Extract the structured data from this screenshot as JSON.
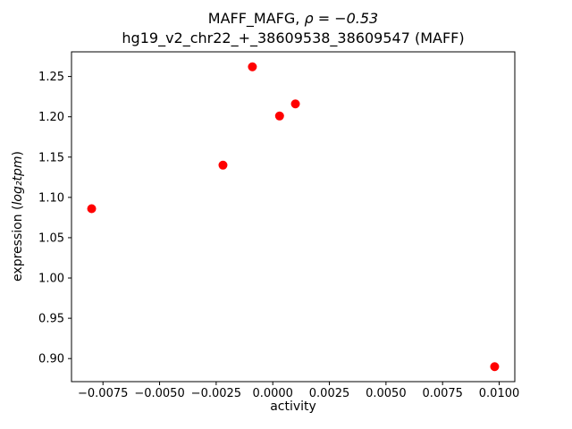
{
  "figure": {
    "title_prefix": "MAFF_MAFG, ",
    "title_math": "ρ = −0.53",
    "title_line2": "hg19_v2_chr22_+_38609538_38609547 (MAFF)",
    "xlabel": "activity",
    "ylabel_prefix": "expression (",
    "ylabel_math": "log₂tpm",
    "ylabel_suffix": ")"
  },
  "chart_data": {
    "type": "scatter",
    "title": "MAFF_MAFG, ρ = −0.53\nhg19_v2_chr22_+_38609538_38609547 (MAFF)",
    "xlabel": "activity",
    "ylabel": "expression (log2tpm)",
    "marker_color": "#ff0000",
    "marker_radius": 5,
    "xlim": [
      -0.00889,
      0.01069
    ],
    "ylim": [
      0.8714,
      1.2806
    ],
    "grid": false,
    "legend": null,
    "points": [
      {
        "x": -0.008,
        "y": 1.086
      },
      {
        "x": -0.0022,
        "y": 1.14
      },
      {
        "x": -0.0009,
        "y": 1.262
      },
      {
        "x": 0.0003,
        "y": 1.201
      },
      {
        "x": 0.001,
        "y": 1.216
      },
      {
        "x": 0.0098,
        "y": 0.89
      }
    ],
    "xticks": {
      "values": [
        -0.0075,
        -0.005,
        -0.0025,
        0.0,
        0.0025,
        0.005,
        0.0075,
        0.01
      ],
      "labels": [
        "−0.0075",
        "−0.0050",
        "−0.0025",
        "0.0000",
        "0.0025",
        "0.0050",
        "0.0075",
        "0.0100"
      ]
    },
    "yticks": {
      "values": [
        0.9,
        0.95,
        1.0,
        1.05,
        1.1,
        1.15,
        1.2,
        1.25
      ],
      "labels": [
        "0.90",
        "0.95",
        "1.00",
        "1.05",
        "1.10",
        "1.15",
        "1.20",
        "1.25"
      ]
    }
  }
}
